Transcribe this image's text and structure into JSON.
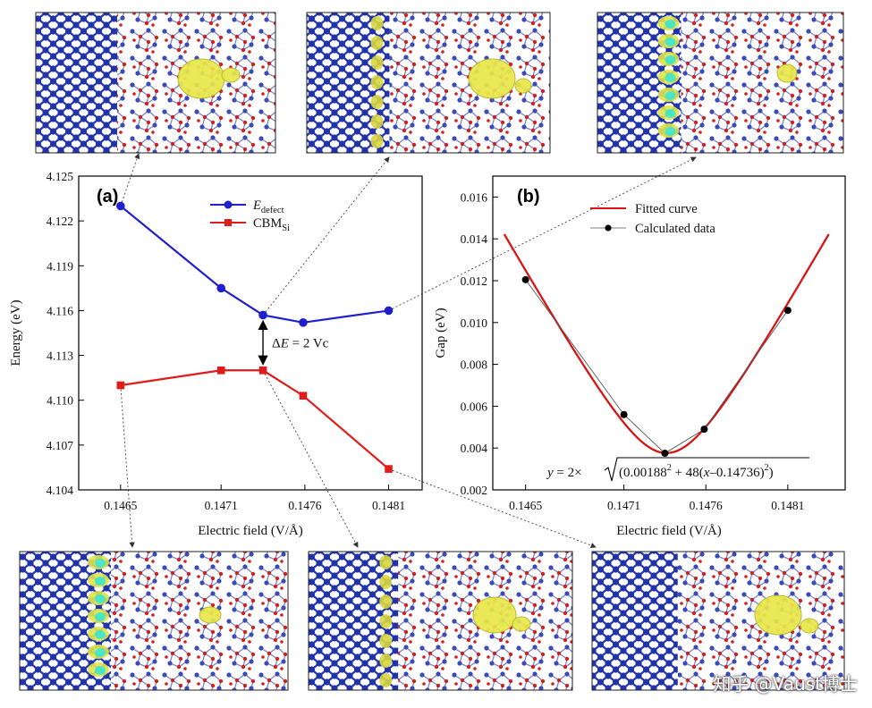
{
  "colors": {
    "defect": "#1f1fcf",
    "cbm": "#e01b1b",
    "fitted": "#d91414",
    "calc": "#000000",
    "atom_si": "#2233aa",
    "atom_o": "#d21f1f",
    "isosurface": "#e8e84a",
    "isosurface_cyan": "#33e6d8"
  },
  "panels": [
    "(a)",
    "(b)"
  ],
  "chart_data": [
    {
      "type": "line",
      "panel": "(a)",
      "xlabel": "Electric field  (V/Å)",
      "ylabel": "Energy (eV)",
      "x_ticks": [
        "0.1465",
        "0.1471",
        "0.1476",
        "0.1481"
      ],
      "y_ticks": [
        "4.104",
        "4.107",
        "4.110",
        "4.113",
        "4.116",
        "4.119",
        "4.122",
        "4.125"
      ],
      "xlim": [
        0.14625,
        0.1483
      ],
      "ylim": [
        4.104,
        4.125
      ],
      "series": [
        {
          "name": "E",
          "name_sub": "defect",
          "marker": "circle",
          "x": [
            0.1465,
            0.1471,
            0.14735,
            0.14759,
            0.1481
          ],
          "y": [
            4.123,
            4.1175,
            4.1157,
            4.1152,
            4.116
          ]
        },
        {
          "name": "CBM",
          "name_sub": "Si",
          "marker": "square",
          "x": [
            0.1465,
            0.1471,
            0.14735,
            0.14759,
            0.1481
          ],
          "y": [
            4.111,
            4.112,
            4.112,
            4.1103,
            4.1054
          ]
        }
      ],
      "legend": "top",
      "annotation": {
        "delta": "Δ",
        "var": "E",
        "rest": " = 2 Vc"
      }
    },
    {
      "type": "line",
      "panel": "(b)",
      "xlabel": "Electric field  (V/Å)",
      "ylabel": "Gap (eV)",
      "x_ticks": [
        "0.1465",
        "0.1471",
        "0.1476",
        "0.1481"
      ],
      "y_ticks": [
        "0.002",
        "0.004",
        "0.006",
        "0.008",
        "0.010",
        "0.012",
        "0.014",
        "0.016"
      ],
      "xlim": [
        0.1463,
        0.14845
      ],
      "ylim": [
        0.002,
        0.017
      ],
      "series": [
        {
          "name": "Fitted curve",
          "style": "solid",
          "formula": {
            "a": 0.00188,
            "b": 48,
            "x0": 0.14736
          },
          "x_range": [
            0.14637,
            0.14835
          ]
        },
        {
          "name": "Calculated data",
          "marker": "circle",
          "x": [
            0.1465,
            0.1471,
            0.14735,
            0.14759,
            0.1481
          ],
          "y": [
            0.01205,
            0.0056,
            0.00375,
            0.0049,
            0.01058
          ]
        }
      ],
      "legend": "top-right",
      "equation": {
        "lhs": "y",
        "eq": " = 2×",
        "radicand_a": "(0.00188",
        "exp2": "2",
        "mid": " + 48(",
        "x": "x",
        "shift": "–0.14736)",
        "close": ")"
      }
    }
  ],
  "watermark": "知乎 @Vaust博士"
}
